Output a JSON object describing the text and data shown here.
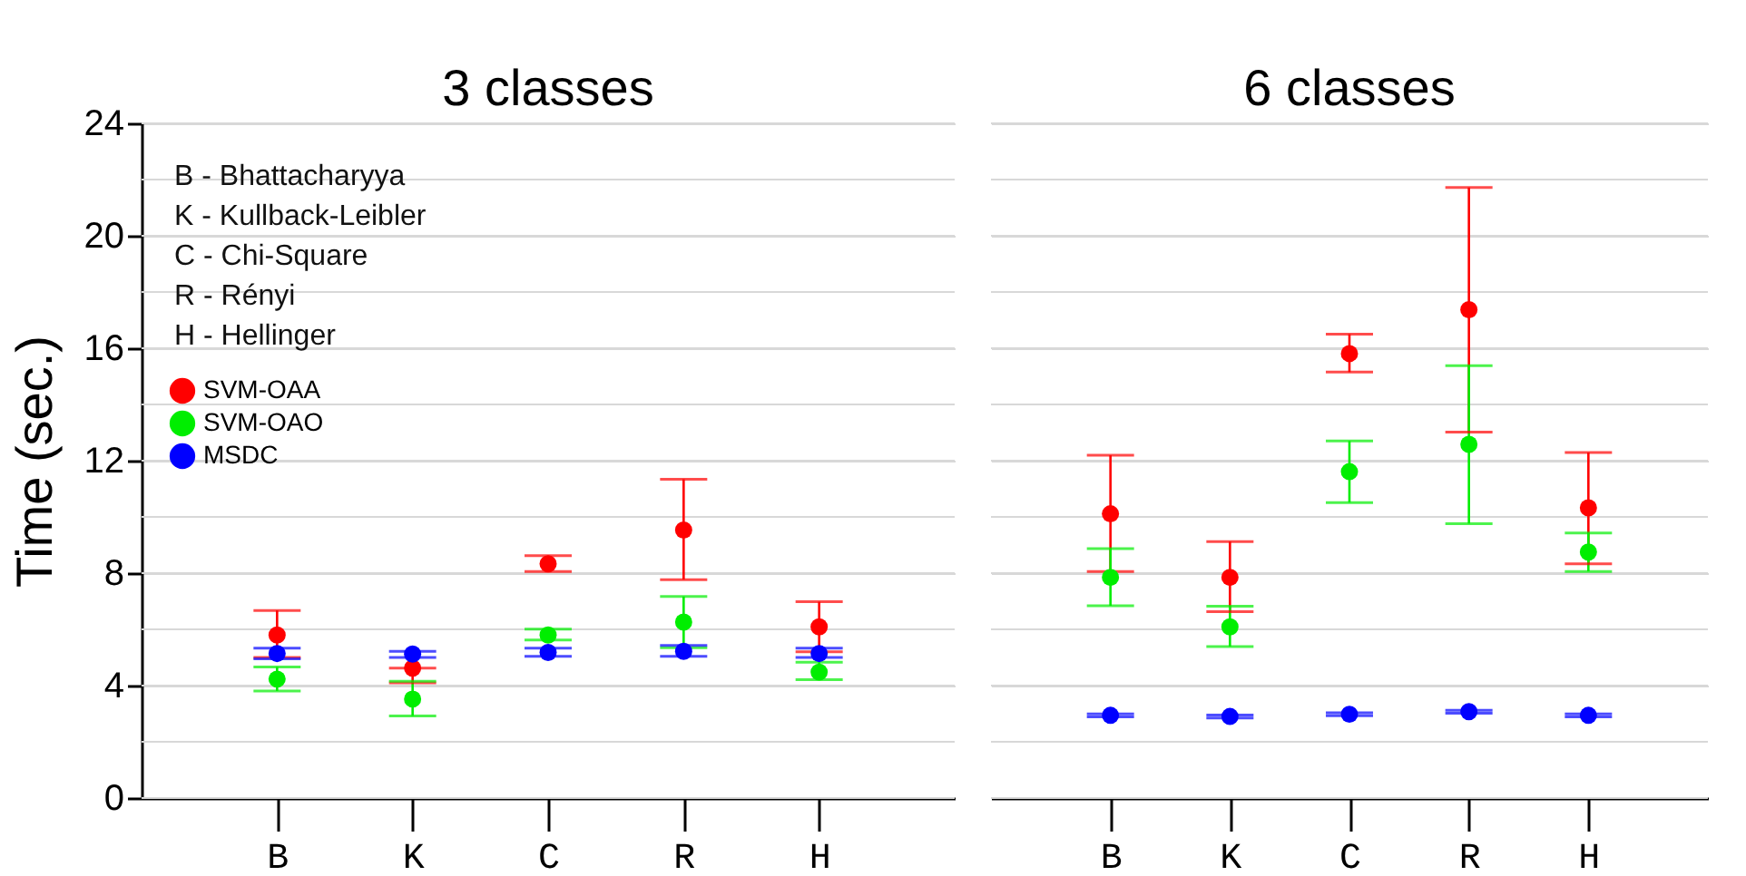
{
  "chart_data": [
    {
      "type": "scatter",
      "title": "3 classes",
      "ylabel": "Time (sec.)",
      "categories": [
        "B",
        "K",
        "C",
        "R",
        "H"
      ],
      "ylim": [
        0,
        24
      ],
      "yticks": [
        0,
        {
          "value": 2,
          "label": null
        },
        4,
        {
          "value": 6,
          "label": null
        },
        8,
        {
          "value": 10,
          "label": null
        },
        12,
        {
          "value": 14,
          "label": null
        },
        16,
        {
          "value": 18,
          "label": null
        },
        20,
        {
          "value": 22,
          "label": null
        },
        24
      ],
      "grid": "y",
      "legend": "top left",
      "marker": "circle",
      "annotations": [
        "B - Bhattacharyya",
        "K - Kullback-Leibler",
        "C - Chi-Square",
        "R - Rényi",
        "H - Hellinger"
      ],
      "series": [
        {
          "name": "SVM-OAA",
          "color": "#ff0000",
          "values": [
            5.8,
            4.62,
            8.33,
            9.53,
            6.09
          ],
          "errors": [
            [
              5.0,
              6.67
            ],
            [
              4.1,
              4.62
            ],
            [
              8.06,
              8.62
            ],
            [
              7.77,
              11.34
            ],
            [
              5.2,
              6.98
            ]
          ]
        },
        {
          "name": "SVM-OAO",
          "color": "#00ee00",
          "values": [
            4.23,
            3.52,
            5.8,
            6.26,
            4.48
          ],
          "errors": [
            [
              3.81,
              4.66
            ],
            [
              2.92,
              4.15
            ],
            [
              5.62,
              6.01
            ],
            [
              5.35,
              7.17
            ],
            [
              4.21,
              4.83
            ]
          ]
        },
        {
          "name": "MSDC",
          "color": "#0000ff",
          "values": [
            5.14,
            5.12,
            5.18,
            5.22,
            5.14
          ],
          "errors": [
            [
              4.95,
              5.33
            ],
            [
              5.0,
              5.22
            ],
            [
              5.04,
              5.33
            ],
            [
              5.04,
              5.43
            ],
            [
              5.0,
              5.33
            ]
          ]
        }
      ]
    },
    {
      "type": "scatter",
      "title": "6 classes",
      "categories": [
        "B",
        "K",
        "C",
        "R",
        "H"
      ],
      "ylim": [
        0,
        24
      ],
      "yticks": [
        0,
        {
          "value": 2,
          "label": null
        },
        4,
        {
          "value": 6,
          "label": null
        },
        8,
        {
          "value": 10,
          "label": null
        },
        12,
        {
          "value": 14,
          "label": null
        },
        16,
        {
          "value": 18,
          "label": null
        },
        20,
        {
          "value": 22,
          "label": null
        },
        24
      ],
      "grid": "y",
      "tick_labels": "x",
      "marker": "circle",
      "series": [
        {
          "color": "#ff0000",
          "values": [
            10.11,
            7.85,
            15.81,
            17.37,
            10.32
          ],
          "errors": [
            [
              8.06,
              12.19
            ],
            [
              6.63,
              9.12
            ],
            [
              15.15,
              16.5
            ],
            [
              13.02,
              21.72
            ],
            [
              8.33,
              12.29
            ]
          ]
        },
        {
          "color": "#00ee00",
          "values": [
            7.85,
            6.09,
            11.61,
            12.58,
            8.75
          ],
          "errors": [
            [
              6.84,
              8.87
            ],
            [
              5.39,
              6.82
            ],
            [
              10.51,
              12.7
            ],
            [
              9.76,
              15.38
            ],
            [
              8.06,
              9.43
            ]
          ]
        },
        {
          "color": "#0000ff",
          "values": [
            2.94,
            2.9,
            2.98,
            3.07,
            2.94
          ],
          "errors": [
            0.05,
            0.05,
            0.05,
            0.05,
            0.05
          ]
        }
      ]
    }
  ]
}
